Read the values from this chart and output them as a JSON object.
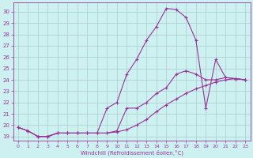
{
  "xlabel": "Windchill (Refroidissement éolien,°C)",
  "bg_color": "#cdf0f0",
  "grid_color": "#aacccc",
  "line_color": "#993399",
  "xlim": [
    -0.5,
    23.5
  ],
  "ylim": [
    18.6,
    30.8
  ],
  "xticks": [
    0,
    1,
    2,
    3,
    4,
    5,
    6,
    7,
    8,
    9,
    10,
    11,
    12,
    13,
    14,
    15,
    16,
    17,
    18,
    19,
    20,
    21,
    22,
    23
  ],
  "yticks": [
    19,
    20,
    21,
    22,
    23,
    24,
    25,
    26,
    27,
    28,
    29,
    30
  ],
  "curve1_x": [
    0,
    1,
    2,
    3,
    4,
    5,
    6,
    7,
    8,
    9,
    10,
    11,
    12,
    13,
    14,
    15,
    16,
    17,
    18,
    19,
    20,
    21,
    22,
    23
  ],
  "curve1_y": [
    19.8,
    19.5,
    19.0,
    19.0,
    19.3,
    19.3,
    19.3,
    19.3,
    19.3,
    21.5,
    22.0,
    24.5,
    25.8,
    27.5,
    28.7,
    30.3,
    30.2,
    29.5,
    27.5,
    21.5,
    25.8,
    24.2,
    24.1,
    24.0
  ],
  "curve2_x": [
    0,
    1,
    2,
    3,
    4,
    5,
    6,
    7,
    8,
    9,
    10,
    11,
    12,
    13,
    14,
    15,
    16,
    17,
    18,
    19,
    20,
    21,
    22,
    23
  ],
  "curve2_y": [
    19.8,
    19.5,
    19.0,
    19.0,
    19.3,
    19.3,
    19.3,
    19.3,
    19.3,
    19.3,
    19.5,
    21.5,
    21.5,
    22.0,
    22.8,
    23.3,
    24.5,
    24.8,
    24.5,
    24.0,
    24.0,
    24.2,
    24.1,
    24.0
  ],
  "curve3_x": [
    0,
    1,
    2,
    3,
    4,
    5,
    6,
    7,
    8,
    9,
    10,
    11,
    12,
    13,
    14,
    15,
    16,
    17,
    18,
    19,
    20,
    21,
    22,
    23
  ],
  "curve3_y": [
    19.8,
    19.5,
    19.0,
    19.0,
    19.3,
    19.3,
    19.3,
    19.3,
    19.3,
    19.3,
    19.4,
    19.6,
    20.0,
    20.5,
    21.2,
    21.8,
    22.3,
    22.8,
    23.2,
    23.5,
    23.8,
    24.0,
    24.1,
    24.0
  ]
}
